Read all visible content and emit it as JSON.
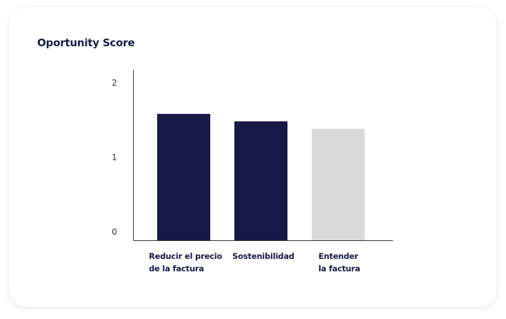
{
  "chart_data": {
    "type": "bar",
    "title": "Oportunity Score",
    "xlabel": "",
    "ylabel": "",
    "categories": [
      [
        "Reducir el precio",
        "de la factura"
      ],
      [
        "Sostenibilidad"
      ],
      [
        "Entender",
        "la factura"
      ]
    ],
    "values": [
      1.7,
      1.6,
      1.5
    ],
    "colors": [
      "#171a46",
      "#171a46",
      "#d9d9d9"
    ],
    "yticks": [
      "0",
      "1",
      "2"
    ],
    "ylim": [
      0,
      2.2
    ],
    "grid": false,
    "legend": "none"
  }
}
